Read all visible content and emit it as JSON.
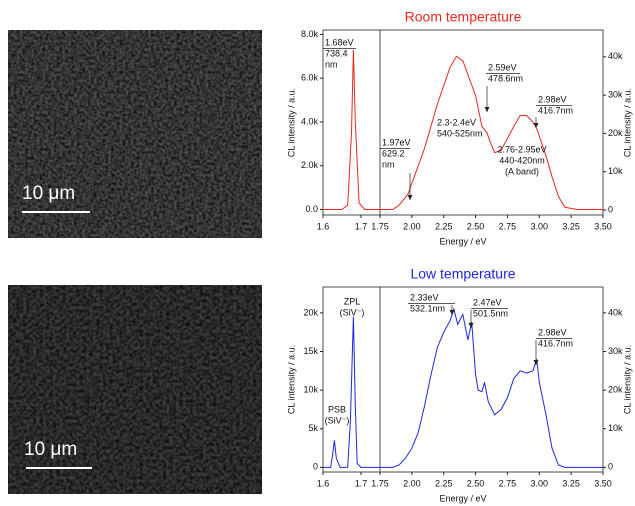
{
  "images": [
    {
      "scale_label": "10 μm"
    },
    {
      "scale_label": "10 μm"
    }
  ],
  "chart_data": [
    {
      "type": "line",
      "title": "Room temperature",
      "title_color": "#e8281e",
      "y_label": "CL intensity / a.u.",
      "y2_label": "CL intensity / a.u.",
      "x_label": "Energy / eV",
      "x_segments": [
        {
          "xlim": [
            1.6,
            1.75
          ],
          "xticks": [
            1.6,
            1.7
          ]
        },
        {
          "xlim": [
            1.75,
            3.5
          ],
          "xticks": [
            1.75,
            {
              "value": 2,
              "label": "2.00"
            },
            2.25,
            {
              "value": 2.5,
              "label": "2.50"
            },
            2.75,
            {
              "value": 3,
              "label": "3.00"
            },
            3.25,
            {
              "value": 3.5,
              "label": "3.50"
            }
          ]
        }
      ],
      "ylim": [
        -250,
        8200
      ],
      "yticks": [
        {
          "value": 0,
          "label": "0.0"
        },
        {
          "value": 2000,
          "label": "2.0k"
        },
        {
          "value": 4000,
          "label": "4.0k"
        },
        {
          "value": 6000,
          "label": "6.0k"
        },
        {
          "value": 8000,
          "label": "8.0k"
        }
      ],
      "y2lim": [
        -1300,
        47000
      ],
      "y2ticks": [
        0,
        {
          "value": 10000,
          "label": "10k"
        },
        {
          "value": 20000,
          "label": "20k"
        },
        {
          "value": 30000,
          "label": "30k"
        },
        {
          "value": 40000,
          "label": "40k"
        }
      ],
      "series": [
        {
          "color": "#e8281e",
          "x": [
            1.6,
            1.65,
            1.665,
            1.675,
            1.68,
            1.685,
            1.695,
            1.71,
            1.75,
            1.85,
            1.9,
            1.97,
            2.0,
            2.1,
            2.2,
            2.3,
            2.35,
            2.4,
            2.5,
            2.55,
            2.59,
            2.62,
            2.65,
            2.7,
            2.8,
            2.85,
            2.9,
            2.95,
            2.98,
            3.05,
            3.1,
            3.15,
            3.2,
            3.3,
            3.5
          ],
          "values": [
            0,
            0,
            200,
            3500,
            7300,
            4000,
            300,
            0,
            0,
            0,
            200,
            700,
            1200,
            2800,
            4800,
            6500,
            7000,
            6800,
            5200,
            3800,
            3500,
            3000,
            2600,
            2700,
            3800,
            4300,
            4300,
            4000,
            3700,
            2500,
            1500,
            600,
            100,
            0,
            0
          ]
        }
      ],
      "annotations": [
        {
          "lines": [
            "1.68eV",
            "738.4",
            "nm"
          ]
        },
        {
          "lines": [
            "1.97eV",
            "629.2",
            "nm"
          ]
        },
        {
          "lines": [
            "2.59eV",
            "478.6nm"
          ]
        },
        {
          "lines": [
            "2.3-2.4eV",
            "540-525nm"
          ]
        },
        {
          "lines": [
            "2.98eV",
            "416.7nm"
          ]
        },
        {
          "lines": [
            "2.76-2.95eV",
            "440-420nm",
            "(A band)"
          ]
        }
      ]
    },
    {
      "type": "line",
      "title": "Low temperature",
      "title_color": "#1e28e0",
      "y_label": "CL intensity / a.u.",
      "y2_label": "CL intensity / a.u.",
      "x_label": "Energy / eV",
      "x_segments": [
        {
          "xlim": [
            1.6,
            1.75
          ],
          "xticks": [
            1.6,
            1.7
          ]
        },
        {
          "xlim": [
            1.75,
            3.5
          ],
          "xticks": [
            1.75,
            {
              "value": 2,
              "label": "2.00"
            },
            2.25,
            {
              "value": 2.5,
              "label": "2.50"
            },
            2.75,
            {
              "value": 3,
              "label": "3.00"
            },
            3.25,
            {
              "value": 3.5,
              "label": "3.50"
            }
          ]
        }
      ],
      "ylim": [
        -600,
        23350
      ],
      "yticks": [
        0,
        {
          "value": 5000,
          "label": "5k"
        },
        {
          "value": 10000,
          "label": "10k"
        },
        {
          "value": 15000,
          "label": "15k"
        },
        {
          "value": 20000,
          "label": "20k"
        }
      ],
      "y2lim": [
        -1200,
        46700
      ],
      "y2ticks": [
        0,
        {
          "value": 10000,
          "label": "10k"
        },
        {
          "value": 20000,
          "label": "20k"
        },
        {
          "value": 30000,
          "label": "30k"
        },
        {
          "value": 40000,
          "label": "40k"
        }
      ],
      "series": [
        {
          "color": "#1e28e0",
          "x": [
            1.6,
            1.62,
            1.625,
            1.63,
            1.635,
            1.645,
            1.665,
            1.672,
            1.68,
            1.685,
            1.69,
            1.7,
            1.75,
            1.85,
            1.9,
            1.95,
            2.0,
            2.05,
            2.1,
            2.15,
            2.2,
            2.25,
            2.3,
            2.33,
            2.36,
            2.4,
            2.44,
            2.47,
            2.5,
            2.52,
            2.55,
            2.57,
            2.6,
            2.65,
            2.7,
            2.75,
            2.8,
            2.85,
            2.9,
            2.95,
            2.98,
            3.0,
            3.05,
            3.1,
            3.15,
            3.2,
            3.5
          ],
          "values": [
            0,
            0,
            1500,
            3500,
            1200,
            0,
            0,
            6000,
            19500,
            8000,
            500,
            0,
            0,
            0,
            300,
            1200,
            2500,
            4500,
            8000,
            12000,
            15500,
            17500,
            19000,
            20500,
            18500,
            19800,
            16500,
            18800,
            12000,
            10000,
            9800,
            11000,
            8500,
            6800,
            7500,
            9000,
            11500,
            12500,
            12200,
            12500,
            14000,
            11000,
            7000,
            2500,
            300,
            0,
            0
          ]
        }
      ],
      "annotations": [
        {
          "lines": [
            "ZPL",
            "(SiV⁻)"
          ]
        },
        {
          "lines": [
            "PSB",
            "(SiV⁻)"
          ]
        },
        {
          "lines": [
            "2.33eV",
            "532.1nm"
          ]
        },
        {
          "lines": [
            "2.47eV",
            "501.5nm"
          ]
        },
        {
          "lines": [
            "2.98eV",
            "416.7nm"
          ]
        }
      ]
    }
  ]
}
